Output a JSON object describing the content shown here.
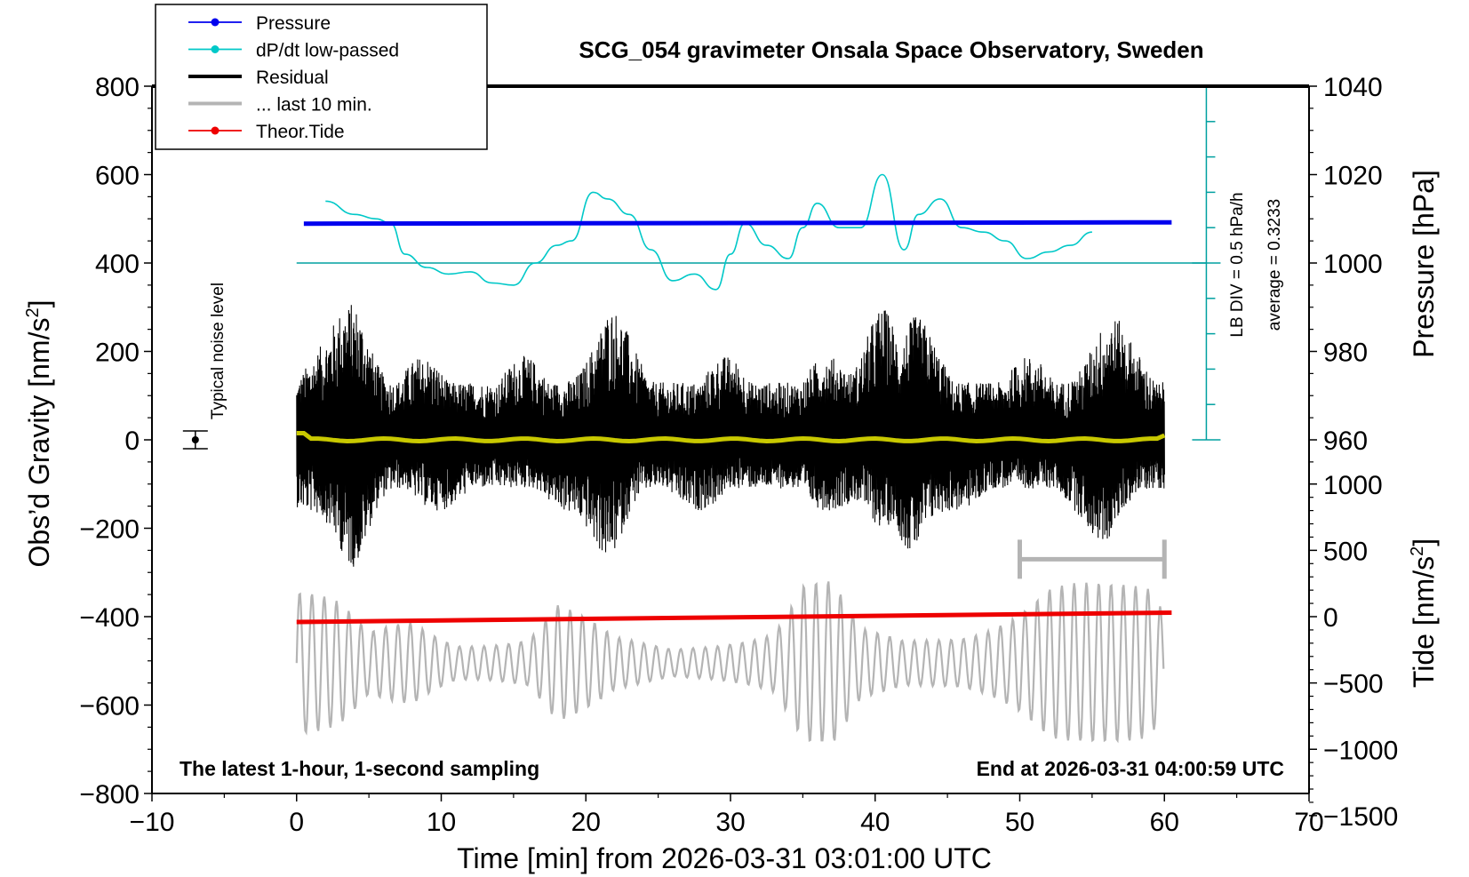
{
  "chart_data": {
    "type": "line",
    "title": "SCG_054 gravimeter Onsala Space Observatory, Sweden",
    "xlabel": "Time [min] from 2026-03-31 03:01:00 UTC",
    "ylabel_left": "Obs’d Gravity [nm/s²]",
    "ylabel_left_main": "Obs’d Gravity [nm/s",
    "ylabel_left_sup": "2",
    "ylabel_left_end": "]",
    "ylabel_pressure": "Pressure [hPa]",
    "ylabel_tide_main": "Tide [nm/s",
    "ylabel_tide_sup": "2",
    "ylabel_tide_end": "]",
    "xlim": [
      -10,
      70
    ],
    "xticks": [
      -10,
      0,
      10,
      20,
      30,
      40,
      50,
      60,
      70
    ],
    "xtick_labels": [
      "−10",
      "0",
      "10",
      "20",
      "30",
      "40",
      "50",
      "60",
      "70"
    ],
    "ylim": [
      -800,
      800
    ],
    "yticks": [
      -800,
      -600,
      -400,
      -200,
      0,
      200,
      400,
      600,
      800
    ],
    "ytick_labels": [
      "−800",
      "−600",
      "−400",
      "−200",
      "0",
      "200",
      "400",
      "600",
      "800"
    ],
    "pressure_ticks": [
      960,
      980,
      1000,
      1020,
      1040
    ],
    "pressure_tick_labels": [
      "960",
      "980",
      "1000",
      "1020",
      "1040"
    ],
    "tide_ticks": [
      -1500,
      -1000,
      -500,
      0,
      500,
      1000
    ],
    "tide_tick_labels": [
      "−1500",
      "−1000",
      "−500",
      "0",
      "500",
      "1000"
    ],
    "legend": {
      "position": "top-left",
      "entries": [
        {
          "label": "Pressure",
          "color": "#0000ee",
          "marker": true
        },
        {
          "label": "dP/dt low-passed",
          "color": "#00c8c8",
          "marker": true
        },
        {
          "label": "Residual",
          "color": "#000000",
          "marker": false
        },
        {
          "label": "... last 10 min.",
          "color": "#b4b4b4",
          "marker": false
        },
        {
          "label": "Theor.Tide",
          "color": "#ee0000",
          "marker": true
        }
      ]
    },
    "series": [
      {
        "name": "Pressure",
        "color": "#0000ee",
        "axis": "pressure",
        "x": [
          0.5,
          60.5
        ],
        "values": [
          1008.9,
          1009.2
        ]
      },
      {
        "name": "dP/dt low-passed",
        "color": "#00c8c8",
        "axis": "left",
        "x": [
          2,
          4,
          5.5,
          6.5,
          7.5,
          9,
          10.5,
          12,
          13.5,
          15,
          16.5,
          18,
          19,
          20.5,
          21.5,
          23,
          24.5,
          26,
          27.5,
          29,
          30,
          31,
          32.5,
          34,
          35,
          36,
          37.5,
          39,
          40.5,
          42,
          43,
          44.5,
          46,
          47.5,
          49,
          50.5,
          52,
          53.5,
          55
        ],
        "values": [
          540,
          510,
          500,
          490,
          420,
          390,
          375,
          380,
          355,
          350,
          400,
          440,
          450,
          560,
          545,
          510,
          430,
          360,
          375,
          340,
          420,
          490,
          440,
          410,
          480,
          535,
          480,
          480,
          600,
          430,
          510,
          545,
          480,
          470,
          450,
          410,
          425,
          440,
          470
        ]
      },
      {
        "name": "Residual",
        "color": "#000000",
        "axis": "left",
        "x_range": [
          0,
          60
        ],
        "mean": 0,
        "envelope_min": -290,
        "envelope_max": 310,
        "peaks": [
          {
            "x": 3.8,
            "max": 310,
            "min": -290
          },
          {
            "x": 21.5,
            "max": 260,
            "min": -270
          },
          {
            "x": 40.5,
            "max": 300,
            "min": -200
          },
          {
            "x": 42.5,
            "max": 240,
            "min": -255
          },
          {
            "x": 56,
            "max": 260,
            "min": -200
          }
        ]
      },
      {
        "name": "smoothed residual",
        "color": "#c8c800",
        "axis": "left",
        "x": [
          0,
          60
        ],
        "values": [
          0,
          0
        ]
      },
      {
        "name": "... last 10 min.",
        "color": "#b4b4b4",
        "axis": "left",
        "x_range": [
          0,
          60
        ],
        "min": -680,
        "max": -310
      },
      {
        "name": "Theor.Tide",
        "color": "#ee0000",
        "axis": "tide",
        "x": [
          0,
          60.5
        ],
        "values": [
          -40,
          30
        ]
      }
    ],
    "last10_bar": {
      "x": [
        50,
        60
      ],
      "y": -270
    },
    "dpdt_scale": {
      "label1": "LB DIV = 0.5 hPa/h",
      "label2": "average = 0.3233",
      "baseline": 400,
      "top": 800,
      "bottom": 0
    },
    "noise_label": "Typical noise level",
    "noise_bar": {
      "x": -7,
      "y": 0,
      "err": 20
    },
    "footer_left": "The latest 1-hour, 1-second sampling",
    "footer_right": "End at 2026-03-31 04:00:59 UTC"
  }
}
